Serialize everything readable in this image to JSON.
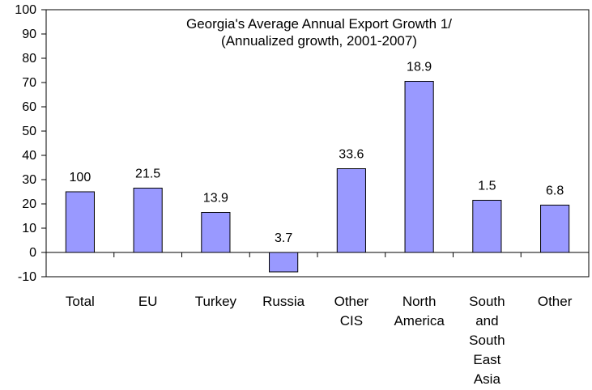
{
  "chart_data": {
    "type": "bar",
    "title": "Georgia's Average Annual Export Growth 1/",
    "subtitle": "(Annualized growth, 2001-2007)",
    "xlabel": "",
    "ylabel": "",
    "ylim": [
      -10,
      100
    ],
    "yticks": [
      -10,
      0,
      10,
      20,
      30,
      40,
      50,
      60,
      70,
      80,
      90,
      100
    ],
    "grid": false,
    "legend": "none",
    "bar_color": "#9999FF",
    "categories": [
      [
        "Total"
      ],
      [
        "EU"
      ],
      [
        "Turkey"
      ],
      [
        "Russia"
      ],
      [
        "Other",
        "CIS"
      ],
      [
        "North",
        "America"
      ],
      [
        "South",
        "and",
        "South",
        "East",
        "Asia"
      ],
      [
        "Other"
      ]
    ],
    "values": [
      25,
      26.5,
      16.5,
      -8,
      34.5,
      70.5,
      21.5,
      19.5
    ],
    "data_labels": [
      "100",
      "21.5",
      "13.9",
      "3.7",
      "33.6",
      "18.9",
      "1.5",
      "6.8"
    ]
  }
}
